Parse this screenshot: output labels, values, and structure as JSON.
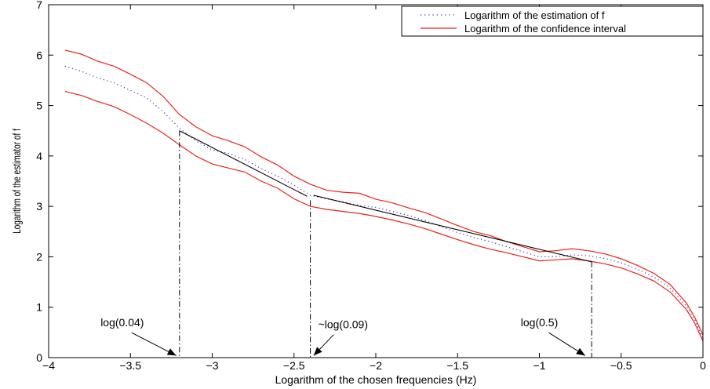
{
  "chart_data": {
    "type": "line",
    "title": "",
    "xlabel": "Logarithm of the chosen frequencies (Hz)",
    "ylabel": "Logarithm of the estimator of f",
    "xlim": [
      -4,
      0
    ],
    "ylim": [
      0,
      7
    ],
    "xticks": [
      -4,
      -3.5,
      -3,
      -2.5,
      -2,
      -1.5,
      -1,
      -0.5,
      0
    ],
    "xtick_labels": [
      "−4",
      "−3.5",
      "−3",
      "−2.5",
      "−2",
      "−1.5",
      "−1",
      "−0.5",
      "0"
    ],
    "yticks": [
      0,
      1,
      2,
      3,
      4,
      5,
      6,
      7
    ],
    "ytick_labels": [
      "0",
      "1",
      "2",
      "3",
      "4",
      "5",
      "6",
      "7"
    ],
    "grid": false,
    "legend": {
      "placement": "top-right",
      "entries": [
        {
          "label": "Logarithm of the estimation of f",
          "style": "dotted",
          "color": "#3a3aa8"
        },
        {
          "label": "Logarithm of the confidence interval",
          "style": "solid",
          "color": "#e8231c"
        }
      ]
    },
    "series": [
      {
        "name": "Logarithm of the estimation of f",
        "color": "#3a3aa8",
        "style": "dotted",
        "x": [
          -3.9,
          -3.8,
          -3.7,
          -3.6,
          -3.5,
          -3.4,
          -3.3,
          -3.2,
          -3.1,
          -3.0,
          -2.9,
          -2.8,
          -2.7,
          -2.6,
          -2.5,
          -2.4,
          -2.3,
          -2.2,
          -2.1,
          -2.0,
          -1.9,
          -1.8,
          -1.7,
          -1.6,
          -1.5,
          -1.4,
          -1.3,
          -1.2,
          -1.1,
          -1.0,
          -0.9,
          -0.8,
          -0.7,
          -0.6,
          -0.5,
          -0.4,
          -0.3,
          -0.2,
          -0.1,
          -0.05,
          0.0
        ],
        "y": [
          5.78,
          5.68,
          5.55,
          5.45,
          5.3,
          5.15,
          4.88,
          4.55,
          4.3,
          4.12,
          4.05,
          3.93,
          3.75,
          3.6,
          3.42,
          3.22,
          3.15,
          3.09,
          3.02,
          2.98,
          2.9,
          2.82,
          2.72,
          2.6,
          2.48,
          2.38,
          2.3,
          2.2,
          2.1,
          2.0,
          2.0,
          2.04,
          2.02,
          1.97,
          1.88,
          1.75,
          1.6,
          1.38,
          1.02,
          0.75,
          0.38
        ]
      },
      {
        "name": "Logarithm of the confidence interval",
        "color": "#e8231c",
        "style": "solid",
        "x": [
          -3.9,
          -3.8,
          -3.7,
          -3.6,
          -3.5,
          -3.4,
          -3.3,
          -3.2,
          -3.1,
          -3.0,
          -2.9,
          -2.8,
          -2.7,
          -2.6,
          -2.5,
          -2.4,
          -2.3,
          -2.2,
          -2.1,
          -2.0,
          -1.9,
          -1.8,
          -1.7,
          -1.6,
          -1.5,
          -1.4,
          -1.3,
          -1.2,
          -1.1,
          -1.0,
          -0.9,
          -0.8,
          -0.7,
          -0.6,
          -0.5,
          -0.4,
          -0.3,
          -0.2,
          -0.1,
          -0.05,
          0.0
        ],
        "y": [
          6.1,
          6.02,
          5.88,
          5.78,
          5.62,
          5.45,
          5.18,
          4.82,
          4.58,
          4.4,
          4.3,
          4.18,
          3.98,
          3.82,
          3.6,
          3.44,
          3.32,
          3.28,
          3.26,
          3.14,
          3.07,
          2.97,
          2.88,
          2.75,
          2.62,
          2.5,
          2.42,
          2.3,
          2.2,
          2.1,
          2.12,
          2.16,
          2.12,
          2.06,
          1.96,
          1.83,
          1.67,
          1.45,
          1.08,
          0.8,
          0.45
        ]
      },
      {
        "name": "",
        "color": "#e8231c",
        "style": "solid",
        "x": [
          -3.9,
          -3.8,
          -3.7,
          -3.6,
          -3.5,
          -3.4,
          -3.3,
          -3.2,
          -3.1,
          -3.0,
          -2.9,
          -2.8,
          -2.7,
          -2.6,
          -2.5,
          -2.4,
          -2.3,
          -2.2,
          -2.1,
          -2.0,
          -1.9,
          -1.8,
          -1.7,
          -1.6,
          -1.5,
          -1.4,
          -1.3,
          -1.2,
          -1.1,
          -1.0,
          -0.9,
          -0.8,
          -0.7,
          -0.6,
          -0.5,
          -0.4,
          -0.3,
          -0.2,
          -0.1,
          -0.05,
          0.0
        ],
        "y": [
          5.28,
          5.2,
          5.08,
          4.98,
          4.82,
          4.65,
          4.45,
          4.22,
          4.0,
          3.84,
          3.76,
          3.68,
          3.5,
          3.36,
          3.15,
          3.0,
          2.94,
          2.9,
          2.86,
          2.8,
          2.73,
          2.65,
          2.56,
          2.45,
          2.34,
          2.24,
          2.15,
          2.08,
          2.0,
          1.92,
          1.94,
          1.96,
          1.92,
          1.86,
          1.78,
          1.66,
          1.52,
          1.3,
          0.95,
          0.68,
          0.33
        ]
      }
    ],
    "fitted_segments": [
      {
        "x": [
          -3.2,
          -2.42
        ],
        "y": [
          4.5,
          3.2
        ],
        "color": "#000000"
      },
      {
        "x": [
          -2.38,
          -0.68
        ],
        "y": [
          3.22,
          1.9
        ],
        "color": "#000000"
      }
    ],
    "vertical_markers": [
      {
        "x": -3.2,
        "y_top": 4.5
      },
      {
        "x": -2.4,
        "y_top": 3.12
      },
      {
        "x": -0.68,
        "y_top": 1.9
      }
    ],
    "annotations": [
      {
        "text": "log(0.04)",
        "text_x": -3.55,
        "text_y": 0.62,
        "arrow_to_x": -3.22,
        "arrow_to_y": 0.04
      },
      {
        "text": "~log(0.09)",
        "text_x": -2.2,
        "text_y": 0.58,
        "arrow_to_x": -2.38,
        "arrow_to_y": 0.04
      },
      {
        "text": "log(0.5)",
        "text_x": -1.0,
        "text_y": 0.62,
        "arrow_to_x": -0.72,
        "arrow_to_y": 0.04
      }
    ]
  }
}
